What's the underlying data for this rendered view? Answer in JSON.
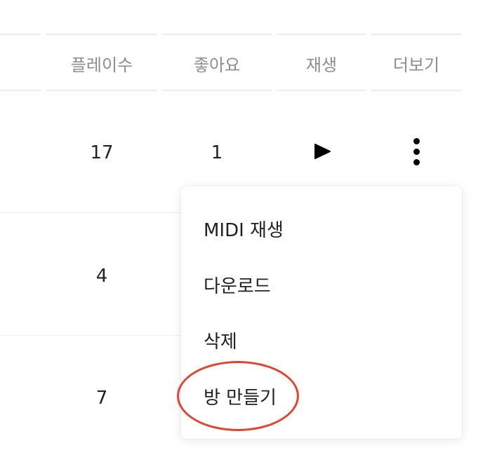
{
  "table": {
    "headers": {
      "plays": "플레이수",
      "likes": "좋아요",
      "play": "재생",
      "more": "더보기"
    },
    "rows": [
      {
        "plays": "17",
        "likes": "1"
      },
      {
        "plays": "4"
      },
      {
        "plays": "7"
      }
    ],
    "play_icon": "play-icon",
    "more_icon": "more-vertical-icon"
  },
  "context_menu": {
    "items": [
      {
        "label": "MIDI 재생"
      },
      {
        "label": "다운로드"
      },
      {
        "label": "삭제"
      },
      {
        "label": "방 만들기"
      }
    ]
  },
  "colors": {
    "annotation_ring": "#e2452f",
    "header_text": "#8d8d8d",
    "body_text": "#222222"
  }
}
